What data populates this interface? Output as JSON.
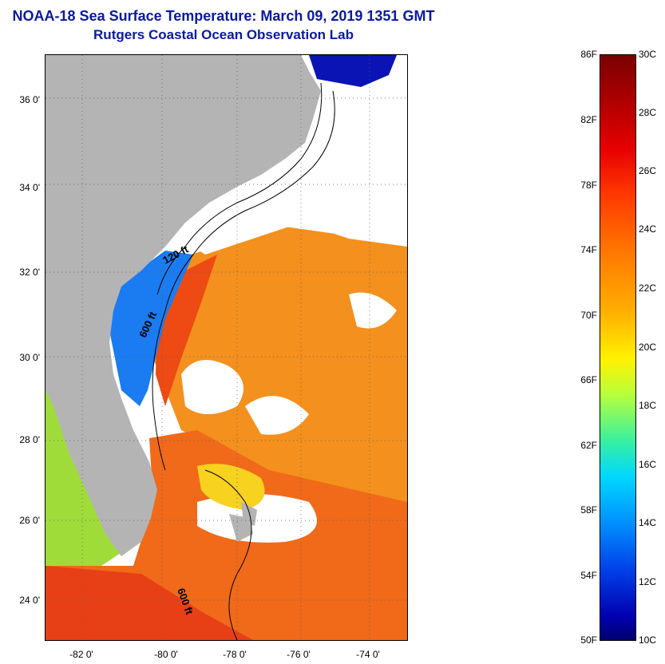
{
  "title": {
    "line1": "NOAA-18 Sea Surface Temperature:  March 09, 2019 1351 GMT",
    "line2": "Rutgers Coastal Ocean Observation Lab"
  },
  "map": {
    "lat_labels": [
      "36 0'",
      "34 0'",
      "32 0'",
      "30 0'",
      "28 0'",
      "26 0'",
      "24 0'"
    ],
    "lon_labels": [
      "-82 0'",
      "-80 0'",
      "-78 0'",
      "-76 0'",
      "-74 0'"
    ],
    "contour_labels": [
      "120 ft",
      "600 ft",
      "600 ft"
    ],
    "colors": {
      "land": "#b4b4b4",
      "cloud": "#ffffff",
      "warm": "#f4881e",
      "hot": "#ee4a14",
      "cool": "#1a6ef0",
      "cold": "#0a14b4"
    }
  },
  "colorbar": {
    "fahrenheit": [
      "86F",
      "82F",
      "78F",
      "74F",
      "70F",
      "66F",
      "62F",
      "58F",
      "54F",
      "50F"
    ],
    "celsius": [
      "30C",
      "28C",
      "26C",
      "24C",
      "22C",
      "20C",
      "18C",
      "16C",
      "14C",
      "12C",
      "10C"
    ]
  }
}
